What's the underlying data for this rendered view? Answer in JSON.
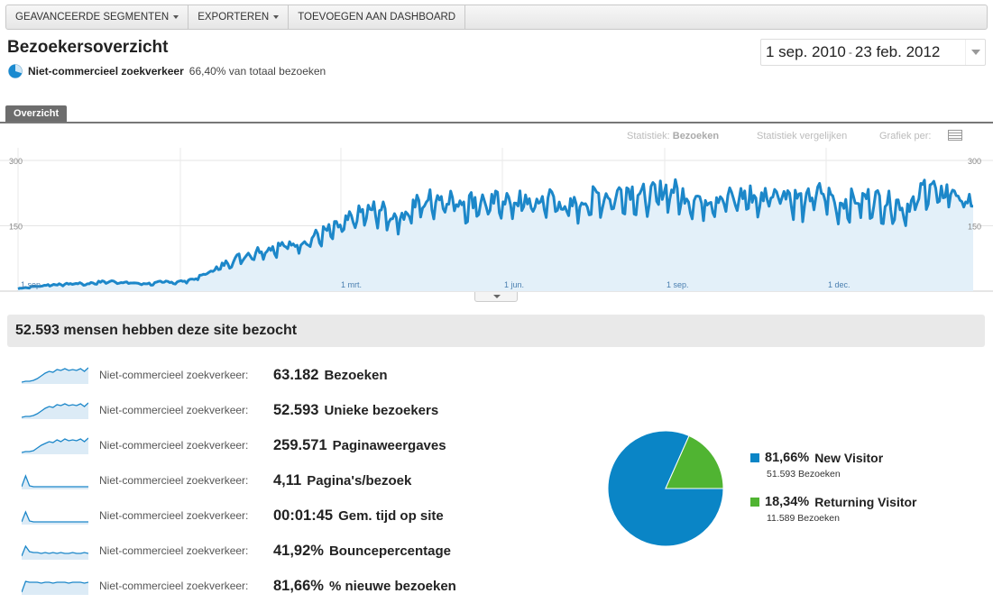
{
  "toolbar": {
    "segments_label": "GEAVANCEERDE SEGMENTEN",
    "export_label": "EXPORTEREN",
    "dashboard_label": "TOEVOEGEN AAN DASHBOARD"
  },
  "page": {
    "title": "Bezoekersoverzicht",
    "segment_name": "Niet-commercieel zoekverkeer",
    "segment_pct": "66,40% van totaal bezoeken"
  },
  "date_range": {
    "start": "1 sep. 2010",
    "separator": "-",
    "end": "23 feb. 2012"
  },
  "tabs": {
    "overview": "Overzicht"
  },
  "chart_controls": {
    "metric_prefix": "Statistiek:",
    "metric_value": "Bezoeken",
    "compare": "Statistiek vergelijken",
    "graph_by": "Grafiek per:"
  },
  "chart_data": {
    "type": "area",
    "series": [
      {
        "name": "Bezoeken"
      }
    ],
    "ylim": [
      0,
      300
    ],
    "y_ticks": [
      "300",
      "150"
    ],
    "x_tick_labels": [
      "1 sep.",
      "1 mrt.",
      "1 jun.",
      "1 sep.",
      "1 dec."
    ],
    "color": "#1c87c9",
    "fill": "#e3f0f9",
    "weekly_values": [
      6,
      9,
      12,
      15,
      15,
      18,
      16,
      20,
      22,
      21,
      19,
      17,
      17,
      22,
      20,
      24,
      30,
      45,
      55,
      70,
      80,
      88,
      96,
      100,
      105,
      110,
      118,
      130,
      138,
      150,
      168,
      178,
      185,
      172,
      168,
      190,
      200,
      210,
      215,
      205,
      200,
      208,
      192,
      212,
      200,
      205,
      196,
      212,
      205,
      185,
      200,
      208,
      218,
      212,
      230,
      222,
      212,
      222,
      232,
      218,
      212,
      205,
      215,
      210,
      212,
      218,
      205,
      228,
      232,
      212,
      200,
      222,
      218,
      195,
      205,
      205,
      212,
      200,
      200,
      190,
      205,
      250,
      210,
      235,
      210,
      195
    ]
  },
  "summary": {
    "headline": "52.593 mensen hebben deze site bezocht"
  },
  "metrics": [
    {
      "segment": "Niet-commercieel zoekverkeer:",
      "value": "63.182",
      "label": "Bezoeken"
    },
    {
      "segment": "Niet-commercieel zoekverkeer:",
      "value": "52.593",
      "label": "Unieke bezoekers"
    },
    {
      "segment": "Niet-commercieel zoekverkeer:",
      "value": "259.571",
      "label": "Paginaweergaves"
    },
    {
      "segment": "Niet-commercieel zoekverkeer:",
      "value": "4,11",
      "label": "Pagina's/bezoek"
    },
    {
      "segment": "Niet-commercieel zoekverkeer:",
      "value": "00:01:45",
      "label": "Gem. tijd op site"
    },
    {
      "segment": "Niet-commercieel zoekverkeer:",
      "value": "41,92%",
      "label": "Bouncepercentage"
    },
    {
      "segment": "Niet-commercieel zoekverkeer:",
      "value": "81,66%",
      "label": "% nieuwe bezoeken"
    }
  ],
  "visitor_pie": {
    "type": "pie",
    "slices": [
      {
        "pct_label": "81,66%",
        "label": "New Visitor",
        "visits": "51.593 Bezoeken",
        "share": 81.66,
        "color": "#0a85c6"
      },
      {
        "pct_label": "18,34%",
        "label": "Returning Visitor",
        "visits": "11.589 Bezoeken",
        "share": 18.34,
        "color": "#50b432"
      }
    ]
  }
}
